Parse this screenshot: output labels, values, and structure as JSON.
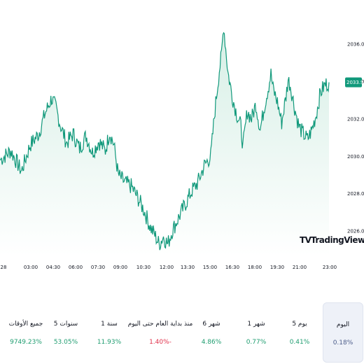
{
  "chart_data": {
    "type": "area",
    "series_color": "#11997b",
    "fill_top_color": "#d7efe6",
    "fill_bottom_color": "#ffffff",
    "x_labels": [
      "28",
      "03:00",
      "04:30",
      "06:00",
      "07:30",
      "09:00",
      "10:30",
      "12:00",
      "13:30",
      "15:00",
      "16:30",
      "18:00",
      "19:30",
      "21:00",
      "23:00"
    ],
    "y_ticks": [
      "2036.00",
      "2034.00",
      "2032.00",
      "2030.00",
      "2028.00",
      "2026.00"
    ],
    "y_tick_values": [
      2036,
      2034,
      2032,
      2030,
      2028,
      2026
    ],
    "ylim": [
      2024.7,
      2037.6
    ],
    "last_price": "2033.95",
    "last_price_value": 2033.95,
    "key_points": [
      [
        0,
        2029.8
      ],
      [
        5,
        2030.3
      ],
      [
        10,
        2029.2
      ],
      [
        14,
        2030.6
      ],
      [
        18,
        2031.2
      ],
      [
        21,
        2032.3
      ],
      [
        24,
        2033.1
      ],
      [
        26,
        2032.6
      ],
      [
        28,
        2031.7
      ],
      [
        31,
        2030.7
      ],
      [
        34,
        2031.2
      ],
      [
        37,
        2030.4
      ],
      [
        40,
        2031.1
      ],
      [
        43,
        2030.2
      ],
      [
        46,
        2030.8
      ],
      [
        49,
        2030.3
      ],
      [
        51,
        2031.3
      ],
      [
        53,
        2030.6
      ],
      [
        55,
        2029.0
      ],
      [
        58,
        2028.6
      ],
      [
        61,
        2028.4
      ],
      [
        64,
        2027.8
      ],
      [
        67,
        2027.1
      ],
      [
        70,
        2026.2
      ],
      [
        72,
        2025.8
      ],
      [
        74,
        2025.3
      ],
      [
        76,
        2025.7
      ],
      [
        78,
        2025.3
      ],
      [
        80,
        2026.0
      ],
      [
        83,
        2026.7
      ],
      [
        86,
        2027.4
      ],
      [
        89,
        2028.1
      ],
      [
        92,
        2028.6
      ],
      [
        95,
        2029.5
      ],
      [
        98,
        2030.0
      ],
      [
        100,
        2032.5
      ],
      [
        102,
        2034.6
      ],
      [
        103,
        2035.4
      ],
      [
        104,
        2037.0
      ],
      [
        106,
        2034.5
      ],
      [
        108,
        2033.2
      ],
      [
        110,
        2032.3
      ],
      [
        112,
        2031.6
      ],
      [
        113,
        2030.5
      ],
      [
        115,
        2032.4
      ],
      [
        117,
        2032.0
      ],
      [
        119,
        2032.8
      ],
      [
        121,
        2031.4
      ],
      [
        123,
        2032.7
      ],
      [
        125,
        2033.8
      ],
      [
        126,
        2034.4
      ],
      [
        127,
        2033.6
      ],
      [
        129,
        2032.9
      ],
      [
        131,
        2031.8
      ],
      [
        133,
        2033.2
      ],
      [
        134,
        2034.1
      ],
      [
        135,
        2033.8
      ],
      [
        137,
        2032.6
      ],
      [
        139,
        2031.6
      ],
      [
        141,
        2031.2
      ],
      [
        143,
        2030.9
      ],
      [
        145,
        2031.4
      ],
      [
        147,
        2032.2
      ],
      [
        149,
        2033.4
      ],
      [
        151,
        2033.8
      ],
      [
        153,
        2033.95
      ]
    ],
    "x_max": 153
  },
  "logo": {
    "glyph": "TV",
    "text": "TradingView"
  },
  "periods": [
    {
      "label": "اليوم",
      "value": "0.18%",
      "tone": "neutral",
      "selected": true
    },
    {
      "label": "5 يوم",
      "value": "0.41%",
      "tone": "pos",
      "selected": false
    },
    {
      "label": "1 شهر",
      "value": "0.77%",
      "tone": "pos",
      "selected": false
    },
    {
      "label": "6 شهر",
      "value": "4.86%",
      "tone": "pos",
      "selected": false
    },
    {
      "label": "منذ بداية العام حتى اليوم",
      "value": "1.40%-",
      "tone": "neg",
      "selected": false
    },
    {
      "label": "1 سنة",
      "value": "11.93%",
      "tone": "pos",
      "selected": false
    },
    {
      "label": "5 سنوات",
      "value": "53.05%",
      "tone": "pos",
      "selected": false
    },
    {
      "label": "جميع الأوقات",
      "value": "9749.23%",
      "tone": "pos",
      "selected": false
    }
  ]
}
